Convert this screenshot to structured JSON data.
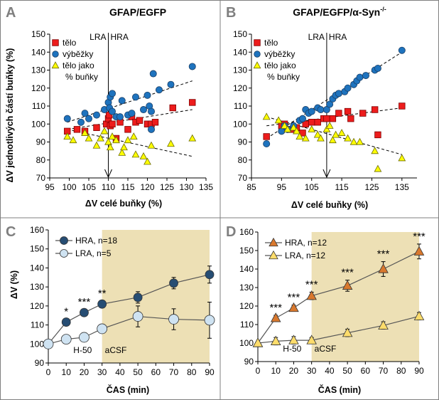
{
  "chart_data": [
    {
      "panel": "A",
      "type": "scatter",
      "title": "GFAP/EGFP",
      "title_super": "",
      "xlabel": "ΔV celé buňky (%)",
      "ylabel": "ΔV jednotlivých částí buňky (%)",
      "xlim": [
        95,
        135
      ],
      "ylim": [
        70,
        150
      ],
      "xticks": [
        95,
        100,
        105,
        110,
        115,
        120,
        125,
        130,
        135
      ],
      "yticks": [
        70,
        80,
        90,
        100,
        110,
        120,
        130,
        140,
        150
      ],
      "vline": {
        "x": 110,
        "label_left": "LRA",
        "label_right": "HRA"
      },
      "series": [
        {
          "name": "tělo",
          "marker": "square",
          "color": "#ed1c1c",
          "points": [
            [
              99.5,
              96
            ],
            [
              102,
              97
            ],
            [
              104,
              96
            ],
            [
              107,
              98
            ],
            [
              109.5,
              100
            ],
            [
              110,
              103
            ],
            [
              110.2,
              105
            ],
            [
              110.5,
              99
            ],
            [
              111,
              100
            ],
            [
              112,
              92
            ],
            [
              113,
              101
            ],
            [
              115,
              97
            ],
            [
              116,
              104
            ],
            [
              117,
              101
            ],
            [
              118,
              102
            ],
            [
              120,
              100
            ],
            [
              121,
              100
            ],
            [
              122,
              101
            ],
            [
              126.5,
              109
            ],
            [
              131.5,
              112
            ]
          ],
          "trend": [
            [
              99.5,
              97
            ],
            [
              131.5,
              108
            ]
          ]
        },
        {
          "name": "výběžky",
          "marker": "circle",
          "color": "#1e73be",
          "points": [
            [
              99.5,
              103
            ],
            [
              103,
              101
            ],
            [
              104,
              106
            ],
            [
              105,
              103
            ],
            [
              107,
              105
            ],
            [
              109,
              108
            ],
            [
              110,
              112
            ],
            [
              110.3,
              109
            ],
            [
              110.5,
              115
            ],
            [
              111,
              117
            ],
            [
              111,
              107
            ],
            [
              112,
              104
            ],
            [
              113,
              104
            ],
            [
              113.5,
              113
            ],
            [
              115,
              105
            ],
            [
              116,
              106
            ],
            [
              117,
              115
            ],
            [
              119,
              108
            ],
            [
              120,
              116
            ],
            [
              120.5,
              110
            ],
            [
              121,
              107
            ],
            [
              121,
              97
            ],
            [
              121.5,
              128
            ],
            [
              123,
              119
            ],
            [
              126,
              122
            ],
            [
              131.5,
              132
            ]
          ],
          "trend": [
            [
              99.5,
              101
            ],
            [
              131.5,
              124
            ]
          ]
        },
        {
          "name": "tělo jako\n% buňky",
          "marker": "triangle",
          "color": "#ffff00",
          "points": [
            [
              99.5,
              93
            ],
            [
              101,
              91
            ],
            [
              104,
              95
            ],
            [
              105,
              92
            ],
            [
              107,
              88
            ],
            [
              108,
              92
            ],
            [
              109,
              96
            ],
            [
              110,
              90
            ],
            [
              110.5,
              87
            ],
            [
              111,
              93
            ],
            [
              112,
              91
            ],
            [
              113.5,
              84
            ],
            [
              114,
              87
            ],
            [
              115,
              91
            ],
            [
              116.5,
              93
            ],
            [
              117,
              83
            ],
            [
              119,
              82
            ],
            [
              120,
              79
            ],
            [
              121,
              88
            ],
            [
              126,
              89
            ],
            [
              131.5,
              92
            ]
          ],
          "trend": [
            [
              99.5,
              97
            ],
            [
              131.5,
              82
            ]
          ]
        }
      ]
    },
    {
      "panel": "B",
      "type": "scatter",
      "title": "GFAP/EGFP/α-Syn",
      "title_super": "-/-",
      "xlabel": "ΔV celé buňky (%)",
      "ylabel": "",
      "xlim": [
        85,
        140
      ],
      "ylim": [
        70,
        150
      ],
      "xticks": [
        85,
        95,
        105,
        115,
        125,
        135
      ],
      "yticks": [
        70,
        80,
        90,
        100,
        110,
        120,
        130,
        140,
        150
      ],
      "vline": {
        "x": 110,
        "label_left": "LRA",
        "label_right": "HRA"
      },
      "series": [
        {
          "name": "tělo",
          "marker": "square",
          "color": "#ed1c1c",
          "points": [
            [
              90,
              93
            ],
            [
              95,
              99
            ],
            [
              96,
              100
            ],
            [
              98,
              97
            ],
            [
              100,
              98
            ],
            [
              102,
              95
            ],
            [
              103,
              100
            ],
            [
              105,
              101
            ],
            [
              107,
              101
            ],
            [
              109,
              103
            ],
            [
              110,
              103
            ],
            [
              112,
              103
            ],
            [
              114,
              106
            ],
            [
              117,
              107
            ],
            [
              118,
              103
            ],
            [
              122,
              106
            ],
            [
              126,
              108
            ],
            [
              127,
              94
            ],
            [
              135,
              110
            ]
          ],
          "trend": [
            [
              90,
              99
            ],
            [
              135,
              109
            ]
          ]
        },
        {
          "name": "výběžky",
          "marker": "circle",
          "color": "#1e73be",
          "points": [
            [
              90,
              89
            ],
            [
              95,
              96
            ],
            [
              96,
              99
            ],
            [
              97,
              97
            ],
            [
              99,
              99
            ],
            [
              101,
              102
            ],
            [
              102,
              103
            ],
            [
              103,
              108
            ],
            [
              104,
              106
            ],
            [
              105,
              107
            ],
            [
              107,
              109
            ],
            [
              108,
              108
            ],
            [
              110,
              108
            ],
            [
              111,
              111
            ],
            [
              112,
              114
            ],
            [
              113,
              116
            ],
            [
              114,
              117
            ],
            [
              116,
              118
            ],
            [
              117,
              120
            ],
            [
              119,
              122
            ],
            [
              120,
              124
            ],
            [
              121,
              126
            ],
            [
              123,
              127
            ],
            [
              126,
              130
            ],
            [
              127,
              131
            ],
            [
              135,
              141
            ]
          ],
          "trend": [
            [
              90,
              92
            ],
            [
              135,
              140
            ]
          ]
        },
        {
          "name": "tělo jako\n% buňky",
          "marker": "triangle",
          "color": "#ffff00",
          "points": [
            [
              90,
              104
            ],
            [
              94,
              102
            ],
            [
              96,
              99
            ],
            [
              97,
              97
            ],
            [
              99,
              98
            ],
            [
              100,
              96
            ],
            [
              101,
              93
            ],
            [
              103,
              92
            ],
            [
              105,
              97
            ],
            [
              107,
              94
            ],
            [
              108,
              92
            ],
            [
              110,
              97
            ],
            [
              111,
              99
            ],
            [
              112,
              91
            ],
            [
              113,
              94
            ],
            [
              115,
              95
            ],
            [
              117,
              92
            ],
            [
              119,
              90
            ],
            [
              121,
              90
            ],
            [
              126,
              85
            ],
            [
              127,
              75
            ],
            [
              135,
              81
            ]
          ],
          "trend": [
            [
              90,
              104
            ],
            [
              135,
              83
            ]
          ]
        }
      ]
    },
    {
      "panel": "C",
      "type": "line",
      "title": "",
      "xlabel": "ČAS (min)",
      "ylabel": "ΔV (%)",
      "xlim": [
        0,
        90
      ],
      "ylim": [
        90,
        160
      ],
      "xticks": [
        0,
        10,
        20,
        30,
        40,
        50,
        60,
        70,
        80,
        90
      ],
      "yticks": [
        90,
        100,
        110,
        120,
        130,
        140,
        150,
        160
      ],
      "shade_from": 30,
      "annotations": [
        "H-50",
        "aCSF"
      ],
      "series": [
        {
          "name": "HRA, n=18",
          "marker": "circle",
          "color": "#264d73",
          "x": [
            0,
            10,
            20,
            30,
            50,
            70,
            90
          ],
          "y": [
            100,
            111.5,
            116.5,
            121,
            124.5,
            132,
            136.5
          ],
          "err": [
            0,
            1.5,
            1.5,
            1.5,
            3,
            3,
            4.5
          ]
        },
        {
          "name": "LRA, n=5",
          "marker": "circle",
          "color": "#cfe3f2",
          "x": [
            0,
            10,
            20,
            30,
            50,
            70,
            90
          ],
          "y": [
            100,
            102.5,
            103.5,
            108,
            114.5,
            113,
            112.5
          ],
          "err": [
            0,
            1.5,
            1.5,
            1.5,
            5.5,
            5.5,
            9.5
          ]
        }
      ],
      "significance": [
        {
          "x": 10,
          "label": "*"
        },
        {
          "x": 20,
          "label": "***"
        },
        {
          "x": 30,
          "label": "**"
        }
      ]
    },
    {
      "panel": "D",
      "type": "line",
      "title": "",
      "xlabel": "ČAS (min)",
      "ylabel": "",
      "xlim": [
        0,
        90
      ],
      "ylim": [
        90,
        160
      ],
      "xticks": [
        0,
        10,
        20,
        30,
        40,
        50,
        60,
        70,
        80,
        90
      ],
      "yticks": [
        90,
        100,
        110,
        120,
        130,
        140,
        150,
        160
      ],
      "shade_from": 30,
      "annotations": [
        "H-50",
        "aCSF"
      ],
      "series": [
        {
          "name": "HRA, n=12",
          "marker": "triangle",
          "color": "#d9782d",
          "x": [
            0,
            10,
            20,
            30,
            50,
            70,
            90
          ],
          "y": [
            100,
            113.5,
            119,
            125.5,
            131,
            140,
            149.5
          ],
          "err": [
            0,
            1.5,
            1.5,
            2,
            3,
            4,
            4
          ]
        },
        {
          "name": "LRA, n=12",
          "marker": "triangle",
          "color": "#fddc6b",
          "x": [
            0,
            10,
            20,
            30,
            50,
            70,
            90
          ],
          "y": [
            100,
            101,
            101.5,
            101.5,
            105.5,
            109.5,
            114.5
          ],
          "err": [
            0,
            2,
            2,
            1.5,
            2,
            2,
            2
          ]
        }
      ],
      "significance": [
        {
          "x": 10,
          "label": "***"
        },
        {
          "x": 20,
          "label": "***"
        },
        {
          "x": 30,
          "label": "***"
        },
        {
          "x": 50,
          "label": "***"
        },
        {
          "x": 70,
          "label": "***"
        },
        {
          "x": 90,
          "label": "***"
        }
      ]
    }
  ]
}
